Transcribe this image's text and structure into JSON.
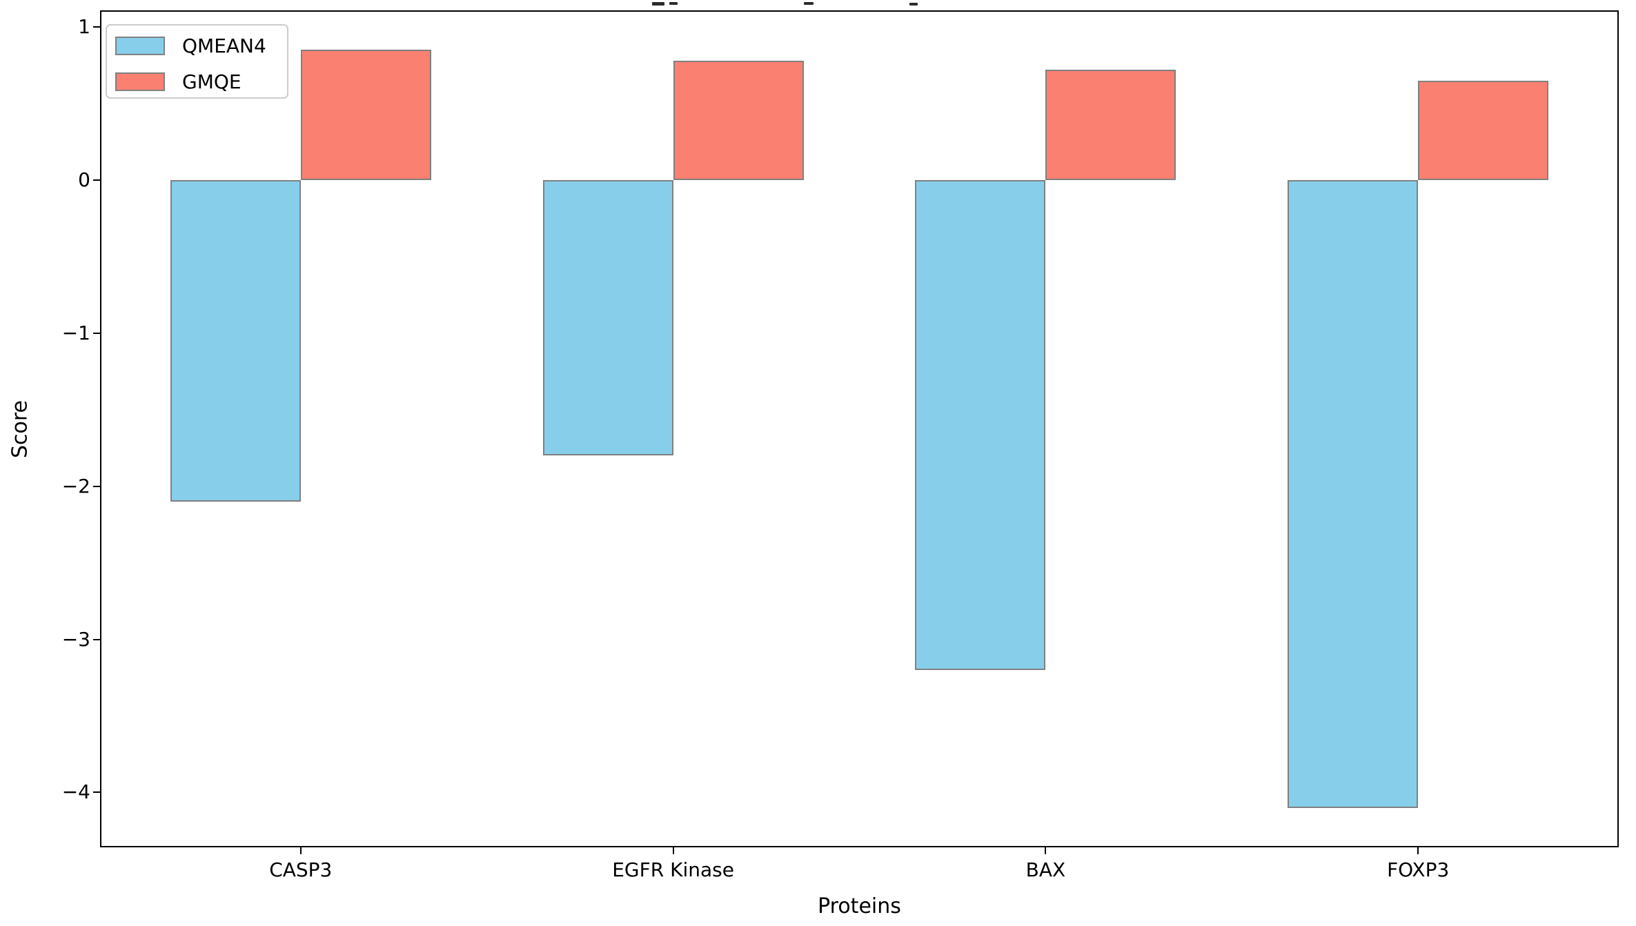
{
  "figure": {
    "background": "#ffffff",
    "title_cropped": true
  },
  "legend": {
    "position": "upper left",
    "items": [
      {
        "label": "QMEAN4",
        "color": "#87CEEB"
      },
      {
        "label": "GMQE",
        "color": "#FA8072"
      }
    ]
  },
  "chart_data": {
    "type": "bar",
    "title": "",
    "xlabel": "Proteins",
    "ylabel": "Score",
    "categories": [
      "CASP3",
      "EGFR Kinase",
      "BAX",
      "FOXP3"
    ],
    "series": [
      {
        "name": "QMEAN4",
        "color": "#87CEEB",
        "values": [
          -2.1,
          -1.8,
          -3.2,
          -4.1
        ]
      },
      {
        "name": "GMQE",
        "color": "#FA8072",
        "values": [
          0.85,
          0.78,
          0.72,
          0.65
        ]
      }
    ],
    "bar_edge_color": "#808080",
    "bar_width": 0.35,
    "yticks": [
      1,
      0,
      -1,
      -2,
      -3,
      -4
    ],
    "ylim": [
      -4.35,
      1.1
    ],
    "xlim": [
      -0.535,
      3.535
    ],
    "grid": false,
    "legend_position": "upper left"
  }
}
